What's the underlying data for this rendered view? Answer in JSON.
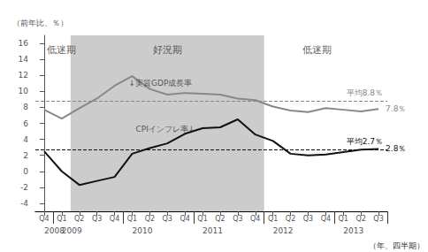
{
  "chart_data": {
    "type": "line",
    "categories": [
      "Q4",
      "Q1",
      "Q2",
      "Q3",
      "Q4",
      "Q1",
      "Q2",
      "Q3",
      "Q4",
      "Q1",
      "Q2",
      "Q3",
      "Q4",
      "Q1",
      "Q2",
      "Q3",
      "Q4",
      "Q1",
      "Q2",
      "Q3"
    ],
    "year_categories": [
      "2008",
      "2009",
      null,
      null,
      null,
      "2010",
      null,
      null,
      null,
      "2011",
      null,
      null,
      null,
      "2012",
      null,
      null,
      null,
      "2013",
      null,
      null
    ],
    "x_label": "（年、四半期）",
    "y_label": "（前年比、％）",
    "ylim": [
      -5,
      17
    ],
    "yticks": [
      -4,
      -2,
      0,
      2,
      4,
      6,
      8,
      10,
      12,
      14,
      16
    ],
    "grid": false,
    "series": [
      {
        "type": "line",
        "color": "#888888",
        "values": [
          7.7,
          6.6,
          7.9,
          9.1,
          10.7,
          11.9,
          10.3,
          9.6,
          9.8,
          9.7,
          9.6,
          9.1,
          8.9,
          8.1,
          7.6,
          7.4,
          7.9,
          7.7,
          7.5,
          7.8
        ],
        "average": 8.8,
        "average_label": "平均8.8％",
        "end_label": "7.8％"
      },
      {
        "type": "line",
        "color": "#111111",
        "values": [
          2.5,
          0.0,
          -1.7,
          -1.2,
          -0.7,
          2.2,
          2.9,
          3.5,
          4.7,
          5.4,
          5.5,
          6.5,
          4.6,
          3.8,
          2.2,
          2.0,
          2.1,
          2.4,
          2.7,
          2.8
        ],
        "average": 2.7,
        "average_label": "平均2.7％",
        "end_label": "2.8％"
      }
    ],
    "shading": {
      "from_index": 2,
      "to_index": 12,
      "color": "#cccccc"
    },
    "period_labels": [
      {
        "text": "低迷期",
        "x": 1.0,
        "y": 15.8
      },
      {
        "text": "好況期",
        "x": 7.0,
        "y": 15.8
      },
      {
        "text": "低迷期",
        "x": 15.5,
        "y": 15.8
      }
    ],
    "annotations": [
      {
        "text": "↓実質GDP成長率",
        "x": 4.8,
        "y": 11.5
      },
      {
        "text": "CPIインフレ率↓",
        "x": 5.2,
        "y": 5.8
      }
    ]
  }
}
